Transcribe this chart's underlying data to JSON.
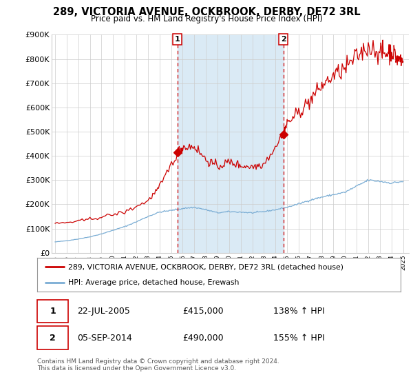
{
  "title": "289, VICTORIA AVENUE, OCKBROOK, DERBY, DE72 3RL",
  "subtitle": "Price paid vs. HM Land Registry's House Price Index (HPI)",
  "legend_line1": "289, VICTORIA AVENUE, OCKBROOK, DERBY, DE72 3RL (detached house)",
  "legend_line2": "HPI: Average price, detached house, Erewash",
  "footnote": "Contains HM Land Registry data © Crown copyright and database right 2024.\nThis data is licensed under the Open Government Licence v3.0.",
  "annotation1_date": "22-JUL-2005",
  "annotation1_price": "£415,000",
  "annotation1_hpi": "138% ↑ HPI",
  "annotation2_date": "05-SEP-2014",
  "annotation2_price": "£490,000",
  "annotation2_hpi": "155% ↑ HPI",
  "house_color": "#cc0000",
  "hpi_color": "#7aadd4",
  "vline_color": "#cc0000",
  "shade_color": "#daeaf5",
  "grid_color": "#cccccc",
  "plot_bg_color": "#ffffff",
  "ylim": [
    0,
    900000
  ],
  "yticks": [
    0,
    100000,
    200000,
    300000,
    400000,
    500000,
    600000,
    700000,
    800000,
    900000
  ],
  "ytick_labels": [
    "£0",
    "£100K",
    "£200K",
    "£300K",
    "£400K",
    "£500K",
    "£600K",
    "£700K",
    "£800K",
    "£900K"
  ],
  "xlim_start": 1994.7,
  "xlim_end": 2025.5,
  "sale1_x": 2005.55,
  "sale1_y": 415000,
  "sale2_x": 2014.68,
  "sale2_y": 490000
}
